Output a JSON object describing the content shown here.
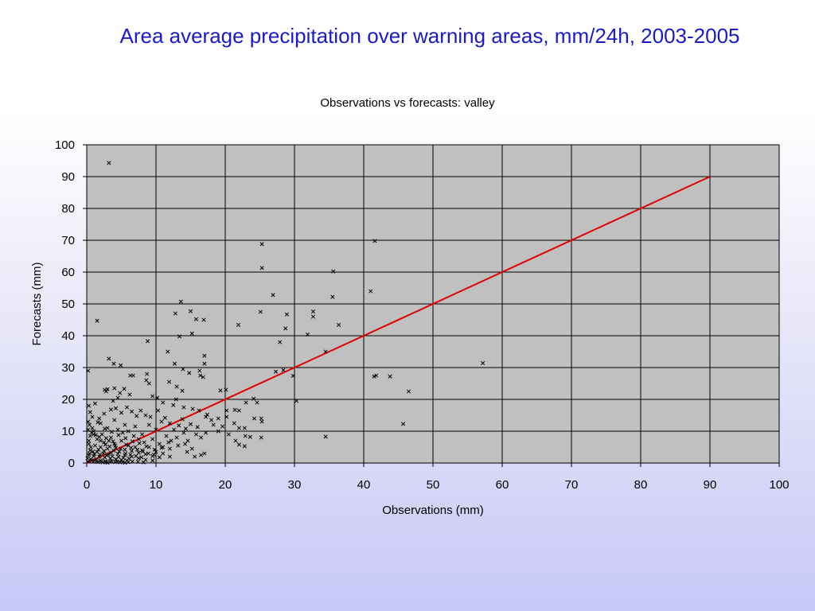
{
  "slide_title": "Area average precipitation over warning areas, mm/24h, 2003-2005",
  "chart_data": {
    "type": "scatter",
    "title": "Observations vs forecasts: valley",
    "xlabel": "Observations (mm)",
    "ylabel": "Forecasts (mm)",
    "xlim": [
      0,
      100
    ],
    "ylim": [
      0,
      100
    ],
    "x_ticks": [
      "0",
      "10",
      "20",
      "30",
      "40",
      "50",
      "60",
      "70",
      "80",
      "90",
      "100"
    ],
    "y_ticks": [
      "0",
      "10",
      "20",
      "30",
      "40",
      "50",
      "60",
      "70",
      "80",
      "90",
      "100"
    ],
    "grid": true,
    "legend": "none",
    "plot_background": "#c0c0c0",
    "marker_color": "#000000",
    "reference_line": {
      "points": [
        [
          0,
          0
        ],
        [
          90,
          90
        ]
      ],
      "color": "#e00000"
    },
    "series": [
      {
        "values": [
          [
            3.2,
            94.3
          ],
          [
            1.5,
            44.7
          ],
          [
            8.8,
            38.3
          ],
          [
            3.2,
            32.8
          ],
          [
            3.9,
            31.2
          ],
          [
            4.9,
            30.7
          ],
          [
            0.2,
            29.0
          ],
          [
            13.6,
            50.7
          ],
          [
            12.8,
            47.0
          ],
          [
            15.0,
            47.7
          ],
          [
            15.8,
            45.2
          ],
          [
            16.9,
            45.0
          ],
          [
            13.4,
            39.8
          ],
          [
            15.2,
            40.7
          ],
          [
            11.7,
            35.0
          ],
          [
            12.7,
            31.2
          ],
          [
            13.9,
            29.5
          ],
          [
            14.8,
            28.3
          ],
          [
            16.3,
            29.0
          ],
          [
            17.0,
            33.7
          ],
          [
            17.0,
            31.2
          ],
          [
            16.8,
            27.0
          ],
          [
            16.4,
            27.5
          ],
          [
            8.7,
            28.0
          ],
          [
            6.3,
            27.5
          ],
          [
            6.7,
            27.5
          ],
          [
            8.6,
            26.0
          ],
          [
            9.0,
            25.0
          ],
          [
            11.9,
            25.5
          ],
          [
            13.0,
            24.0
          ],
          [
            13.8,
            22.7
          ],
          [
            12.9,
            20.0
          ],
          [
            3.0,
            23.2
          ],
          [
            2.6,
            23.0
          ],
          [
            2.8,
            22.5
          ],
          [
            4.0,
            23.5
          ],
          [
            4.8,
            22.0
          ],
          [
            5.4,
            23.3
          ],
          [
            6.2,
            21.5
          ],
          [
            4.5,
            20.5
          ],
          [
            3.8,
            19.5
          ],
          [
            9.5,
            21.0
          ],
          [
            10.2,
            20.5
          ],
          [
            11.0,
            19.0
          ],
          [
            12.5,
            18.2
          ],
          [
            14.0,
            17.5
          ],
          [
            15.3,
            17.0
          ],
          [
            16.2,
            16.5
          ],
          [
            17.4,
            15.2
          ],
          [
            19.3,
            22.8
          ],
          [
            20.1,
            23.0
          ],
          [
            21.4,
            16.7
          ],
          [
            22.0,
            16.5
          ],
          [
            22.0,
            11.0
          ],
          [
            22.9,
            8.5
          ],
          [
            22.0,
            5.8
          ],
          [
            22.8,
            5.3
          ],
          [
            23.0,
            19.0
          ],
          [
            24.1,
            20.2
          ],
          [
            24.6,
            19.0
          ],
          [
            25.2,
            14.0
          ],
          [
            25.3,
            13.0
          ],
          [
            25.2,
            8.0
          ],
          [
            24.2,
            14.0
          ],
          [
            23.6,
            8.2
          ],
          [
            22.8,
            11.0
          ],
          [
            21.3,
            12.5
          ],
          [
            20.2,
            14.5
          ],
          [
            20.2,
            16.5
          ],
          [
            19.6,
            11.5
          ],
          [
            19.0,
            10.0
          ],
          [
            18.3,
            12.0
          ],
          [
            17.2,
            14.5
          ],
          [
            16.5,
            8.0
          ],
          [
            15.8,
            9.0
          ],
          [
            14.6,
            7.0
          ],
          [
            15.2,
            4.5
          ],
          [
            14.2,
            6.0
          ],
          [
            15.6,
            2.0
          ],
          [
            16.5,
            2.5
          ],
          [
            17.0,
            3.0
          ],
          [
            21.9,
            43.4
          ],
          [
            25.3,
            68.8
          ],
          [
            25.3,
            61.3
          ],
          [
            25.1,
            47.5
          ],
          [
            26.9,
            52.8
          ],
          [
            28.9,
            46.7
          ],
          [
            28.7,
            42.3
          ],
          [
            27.9,
            38.0
          ],
          [
            27.3,
            28.7
          ],
          [
            28.4,
            29.2
          ],
          [
            29.8,
            27.4
          ],
          [
            30.3,
            19.5
          ],
          [
            31.9,
            40.4
          ],
          [
            32.7,
            47.6
          ],
          [
            32.7,
            46.0
          ],
          [
            35.6,
            60.2
          ],
          [
            35.5,
            52.2
          ],
          [
            36.4,
            43.4
          ],
          [
            34.5,
            35.0
          ],
          [
            34.5,
            8.3
          ],
          [
            41.6,
            69.8
          ],
          [
            41.0,
            54.0
          ],
          [
            41.5,
            27.2
          ],
          [
            41.8,
            27.5
          ],
          [
            43.8,
            27.2
          ],
          [
            46.5,
            22.5
          ],
          [
            45.7,
            12.3
          ],
          [
            57.2,
            31.4
          ],
          [
            0.3,
            18.0
          ],
          [
            0.5,
            16.0
          ],
          [
            1.2,
            18.7
          ],
          [
            1.8,
            14.0
          ],
          [
            2.5,
            15.5
          ],
          [
            3.5,
            16.8
          ],
          [
            4.2,
            17.2
          ],
          [
            5.0,
            15.8
          ],
          [
            5.8,
            17.5
          ],
          [
            6.5,
            16.2
          ],
          [
            7.2,
            14.8
          ],
          [
            7.8,
            16.5
          ],
          [
            8.5,
            15.0
          ],
          [
            9.2,
            14.5
          ],
          [
            10.3,
            16.5
          ],
          [
            10.8,
            13.0
          ],
          [
            11.3,
            14.2
          ],
          [
            12.0,
            12.5
          ],
          [
            12.6,
            10.5
          ],
          [
            13.3,
            11.8
          ],
          [
            13.8,
            13.8
          ],
          [
            14.3,
            10.8
          ],
          [
            15.0,
            12.2
          ],
          [
            16.0,
            11.3
          ],
          [
            17.2,
            9.5
          ],
          [
            18.0,
            13.5
          ],
          [
            19.0,
            14.0
          ],
          [
            20.5,
            9.0
          ],
          [
            21.5,
            7.0
          ],
          [
            2.0,
            12.5
          ],
          [
            3.0,
            11.0
          ],
          [
            4.0,
            13.5
          ],
          [
            5.5,
            12.0
          ],
          [
            6.0,
            10.0
          ],
          [
            7.0,
            11.5
          ],
          [
            8.0,
            9.0
          ],
          [
            9.0,
            12.0
          ],
          [
            10.0,
            10.5
          ],
          [
            11.5,
            8.5
          ],
          [
            12.2,
            7.0
          ],
          [
            13.0,
            8.0
          ],
          [
            14.0,
            9.5
          ],
          [
            1.0,
            10.0
          ],
          [
            2.2,
            9.0
          ],
          [
            3.5,
            8.0
          ],
          [
            4.5,
            10.5
          ],
          [
            5.2,
            9.5
          ],
          [
            6.8,
            8.5
          ],
          [
            7.5,
            7.5
          ],
          [
            8.3,
            6.5
          ],
          [
            9.5,
            7.5
          ],
          [
            10.5,
            6.0
          ],
          [
            11.0,
            5.0
          ],
          [
            12.0,
            4.5
          ],
          [
            13.2,
            5.5
          ],
          [
            14.5,
            3.5
          ],
          [
            0.5,
            8.5
          ],
          [
            1.5,
            7.5
          ],
          [
            2.5,
            6.5
          ],
          [
            3.2,
            7.0
          ],
          [
            4.0,
            6.0
          ],
          [
            5.0,
            7.0
          ],
          [
            6.0,
            5.5
          ],
          [
            7.0,
            5.0
          ],
          [
            8.0,
            4.0
          ],
          [
            9.0,
            5.0
          ],
          [
            10.0,
            3.5
          ],
          [
            11.0,
            3.0
          ],
          [
            12.0,
            2.0
          ],
          [
            0.2,
            13.0
          ],
          [
            0.4,
            12.0
          ],
          [
            0.8,
            11.0
          ],
          [
            1.0,
            9.0
          ],
          [
            1.8,
            8.2
          ],
          [
            2.8,
            7.8
          ],
          [
            3.8,
            6.8
          ],
          [
            0.3,
            6.0
          ],
          [
            1.2,
            5.5
          ],
          [
            2.0,
            5.0
          ],
          [
            3.0,
            4.5
          ],
          [
            4.2,
            4.8
          ],
          [
            5.5,
            4.2
          ],
          [
            6.5,
            3.8
          ],
          [
            7.5,
            3.2
          ],
          [
            8.5,
            2.8
          ],
          [
            9.5,
            2.2
          ],
          [
            10.5,
            1.8
          ],
          [
            0.5,
            4.0
          ],
          [
            1.5,
            3.5
          ],
          [
            2.5,
            3.8
          ],
          [
            3.5,
            3.2
          ],
          [
            4.5,
            2.9
          ],
          [
            5.5,
            2.5
          ],
          [
            6.5,
            2.0
          ],
          [
            7.5,
            1.5
          ],
          [
            8.5,
            1.0
          ],
          [
            9.5,
            0.8
          ],
          [
            0.3,
            2.5
          ],
          [
            1.0,
            2.2
          ],
          [
            1.8,
            2.0
          ],
          [
            2.6,
            1.8
          ],
          [
            3.4,
            1.5
          ],
          [
            4.2,
            1.2
          ],
          [
            5.0,
            1.0
          ],
          [
            5.8,
            0.8
          ],
          [
            6.6,
            0.5
          ],
          [
            7.4,
            0.4
          ],
          [
            8.2,
            0.2
          ],
          [
            0.1,
            1.5
          ],
          [
            0.6,
            1.2
          ],
          [
            1.3,
            1.0
          ],
          [
            2.0,
            0.8
          ],
          [
            2.7,
            0.6
          ],
          [
            3.4,
            0.4
          ],
          [
            4.1,
            0.3
          ],
          [
            4.8,
            0.2
          ],
          [
            5.5,
            0.1
          ],
          [
            0.2,
            0.5
          ],
          [
            0.9,
            0.4
          ],
          [
            1.6,
            0.3
          ],
          [
            2.3,
            0.2
          ],
          [
            3.0,
            0.1
          ],
          [
            0.4,
            3.0
          ],
          [
            1.1,
            2.8
          ],
          [
            1.9,
            2.6
          ],
          [
            2.9,
            2.4
          ],
          [
            3.7,
            2.1
          ],
          [
            4.6,
            1.9
          ],
          [
            5.3,
            1.6
          ],
          [
            6.1,
            1.4
          ],
          [
            0.7,
            0.8
          ],
          [
            1.4,
            0.6
          ],
          [
            2.1,
            0.5
          ],
          [
            2.8,
            0.3
          ],
          [
            3.6,
            0.6
          ],
          [
            4.4,
            0.5
          ],
          [
            5.2,
            0.4
          ],
          [
            6.0,
            0.3
          ],
          [
            0.3,
            7.0
          ],
          [
            0.6,
            5.0
          ],
          [
            0.9,
            3.6
          ],
          [
            1.7,
            4.2
          ],
          [
            2.4,
            3.0
          ],
          [
            3.1,
            2.7
          ],
          [
            3.9,
            3.9
          ],
          [
            4.7,
            3.6
          ],
          [
            5.6,
            3.0
          ],
          [
            6.3,
            2.6
          ],
          [
            7.1,
            2.2
          ],
          [
            7.9,
            1.8
          ],
          [
            0.8,
            14.5
          ],
          [
            1.6,
            12.8
          ],
          [
            2.6,
            10.8
          ],
          [
            3.6,
            9.8
          ],
          [
            4.6,
            8.8
          ],
          [
            5.6,
            7.8
          ],
          [
            6.6,
            6.8
          ],
          [
            7.6,
            6.2
          ],
          [
            8.6,
            5.2
          ],
          [
            9.8,
            4.2
          ],
          [
            10.8,
            4.8
          ],
          [
            11.8,
            6.5
          ],
          [
            0.2,
            10.5
          ],
          [
            0.7,
            9.5
          ],
          [
            1.3,
            8.8
          ],
          [
            2.0,
            7.0
          ],
          [
            2.7,
            5.8
          ],
          [
            3.3,
            5.2
          ],
          [
            4.1,
            5.5
          ],
          [
            4.9,
            4.5
          ],
          [
            5.7,
            5.8
          ],
          [
            6.4,
            4.8
          ],
          [
            7.3,
            4.2
          ],
          [
            8.1,
            3.6
          ],
          [
            8.9,
            3.0
          ],
          [
            9.7,
            2.6
          ]
        ]
      }
    ]
  }
}
